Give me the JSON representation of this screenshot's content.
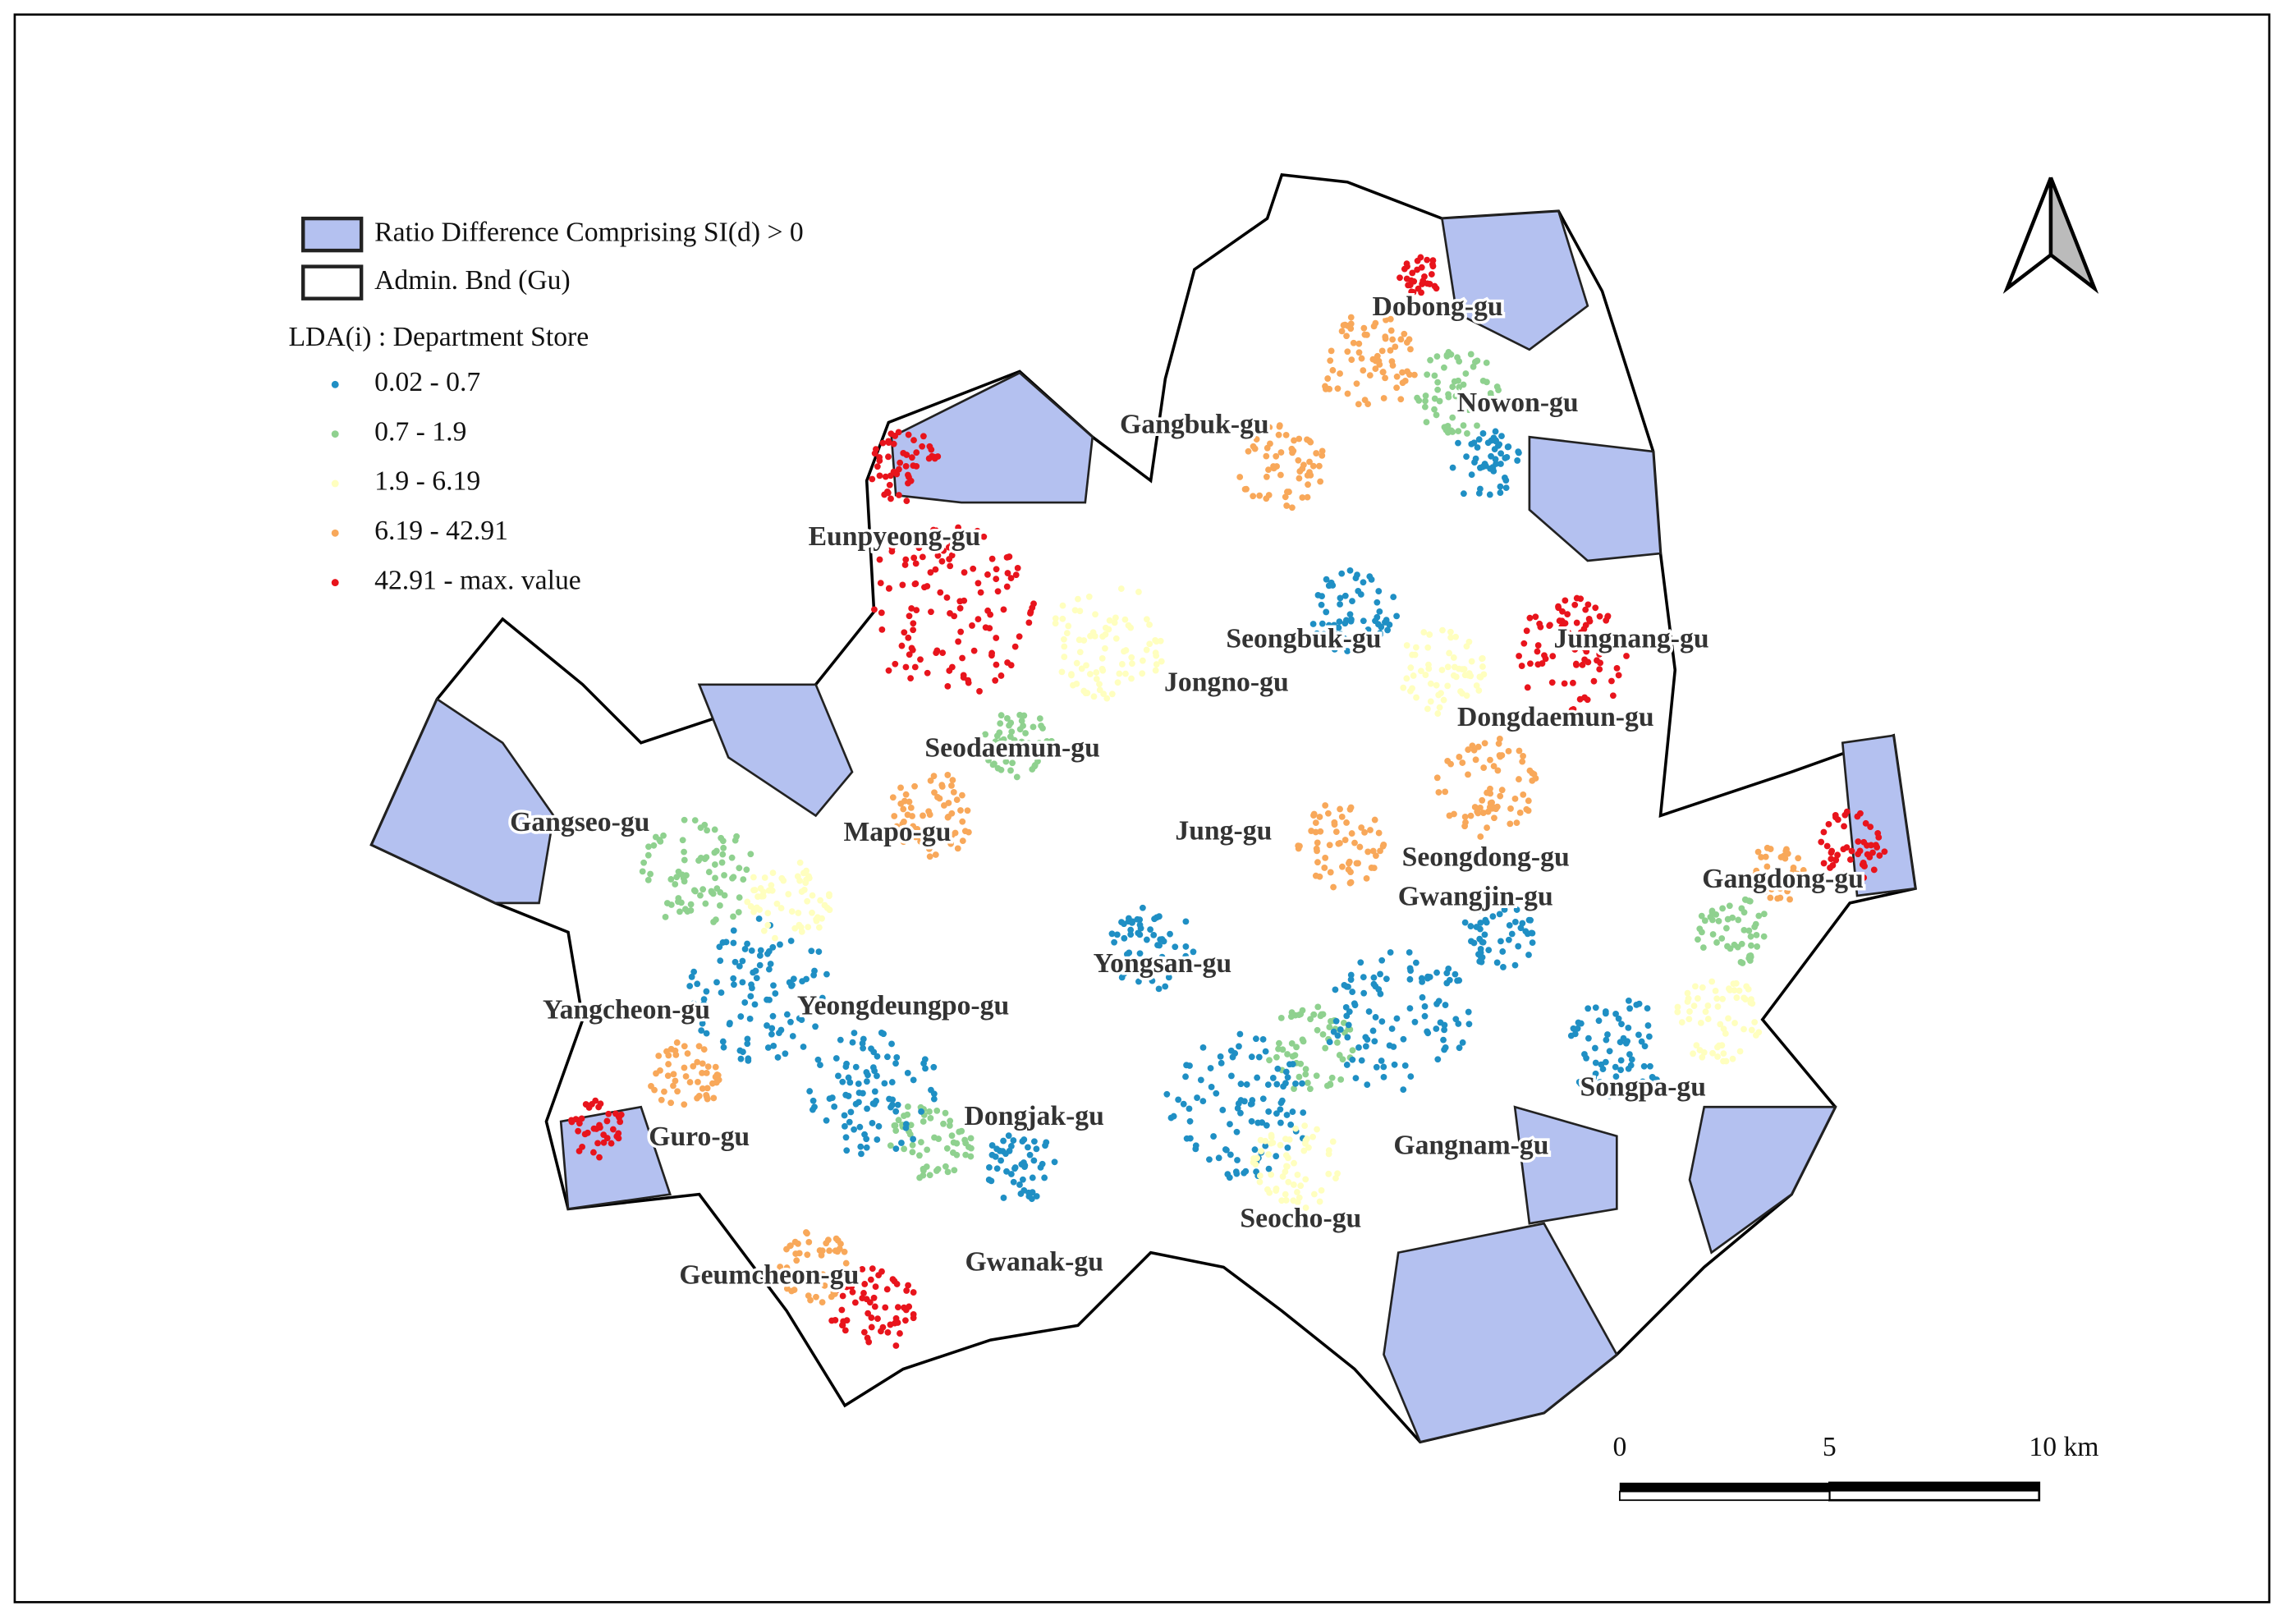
{
  "legend": {
    "items": [
      {
        "label": "Ratio Difference Comprising SI(d) > 0",
        "color": "#b4c1f0"
      },
      {
        "label": "Admin. Bnd (Gu)",
        "color": "#ffffff"
      }
    ],
    "lda_title": "LDA(i) : Department Store",
    "classes": [
      {
        "label": "0.02 - 0.7",
        "color": "#1f8fc4"
      },
      {
        "label": "0.7 - 1.9",
        "color": "#8fd18f"
      },
      {
        "label": "1.9 - 6.19",
        "color": "#ffffbf"
      },
      {
        "label": "6.19 - 42.91",
        "color": "#f8a85a"
      },
      {
        "label": "42.91 - max. value",
        "color": "#e8141c"
      }
    ]
  },
  "districts": [
    "Dobong-gu",
    "Nowon-gu",
    "Gangbuk-gu",
    "Eunpyeong-gu",
    "Seongbuk-gu",
    "Jungnang-gu",
    "Jongno-gu",
    "Dongdaemun-gu",
    "Seodaemun-gu",
    "Gangseo-gu",
    "Mapo-gu",
    "Jung-gu",
    "Seongdong-gu",
    "Gwangjin-gu",
    "Gangdong-gu",
    "Yongsan-gu",
    "Yangcheon-gu",
    "Yeongdeungpo-gu",
    "Songpa-gu",
    "Dongjak-gu",
    "Guro-gu",
    "Gangnam-gu",
    "Seocho-gu",
    "Geumcheon-gu",
    "Gwanak-gu"
  ],
  "scale_bar": {
    "labels": [
      "0",
      "5",
      "10 km"
    ]
  }
}
